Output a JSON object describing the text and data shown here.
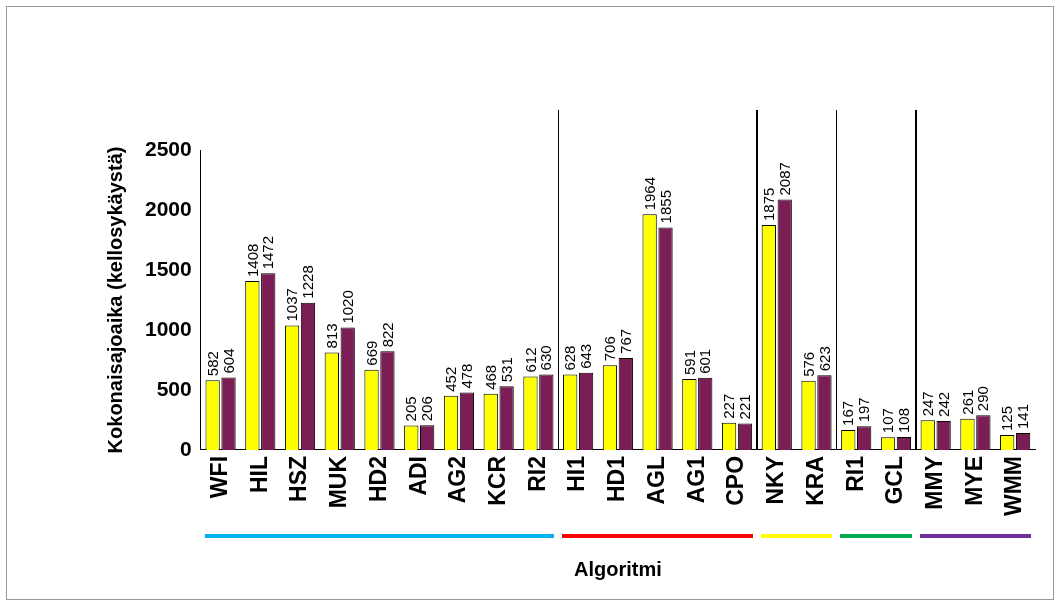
{
  "chart_data": {
    "type": "bar",
    "xlabel": "Algoritmi",
    "ylabel": "Kokonaisajoaika (kellosykäystä)",
    "categories": [
      "WFI",
      "HIL",
      "HSZ",
      "MUK",
      "HD2",
      "ADI",
      "AG2",
      "KCR",
      "RI2",
      "HI1",
      "HD1",
      "AGL",
      "AG1",
      "CPO",
      "NKY",
      "KRA",
      "RI1",
      "GCL",
      "MMY",
      "MYE",
      "WMM"
    ],
    "series": [
      {
        "color": "#ffff00",
        "values": [
          582,
          1408,
          1037,
          813,
          669,
          205,
          452,
          468,
          612,
          628,
          706,
          1964,
          591,
          227,
          1875,
          576,
          167,
          107,
          247,
          261,
          125
        ]
      },
      {
        "color": "#7b1e55",
        "values": [
          604,
          1472,
          1228,
          1020,
          822,
          206,
          478,
          531,
          630,
          643,
          767,
          1855,
          601,
          221,
          2087,
          623,
          197,
          108,
          242,
          290,
          141
        ]
      }
    ],
    "ylim": [
      0,
      2500
    ],
    "yticks": [
      0,
      500,
      1000,
      1500,
      2000,
      2500
    ],
    "grid": false,
    "legend": false,
    "data_labels": true
  }
}
